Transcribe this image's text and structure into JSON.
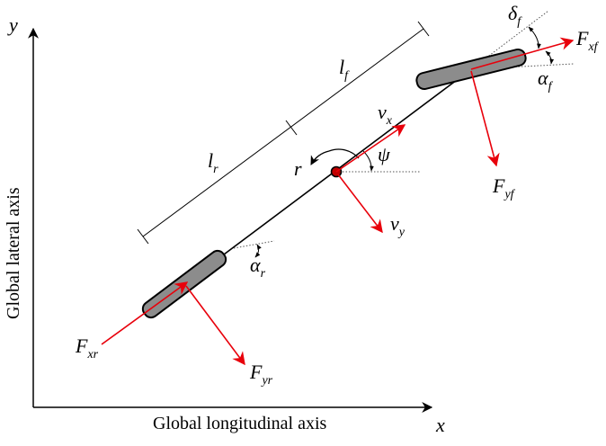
{
  "axes": {
    "x_label": "Global longitudinal axis",
    "y_label": "Global lateral axis",
    "x_symbol": "x",
    "y_symbol": "y"
  },
  "lengths": {
    "front": {
      "main": "l",
      "sub": "f"
    },
    "rear": {
      "main": "l",
      "sub": "r"
    }
  },
  "forces": {
    "front_longitudinal": {
      "main": "F",
      "sub": "xf"
    },
    "front_lateral": {
      "main": "F",
      "sub": "yf"
    },
    "rear_longitudinal": {
      "main": "F",
      "sub": "xr"
    },
    "rear_lateral": {
      "main": "F",
      "sub": "yr"
    }
  },
  "velocities": {
    "longitudinal": {
      "main": "v",
      "sub": "x"
    },
    "lateral": {
      "main": "v",
      "sub": "y"
    }
  },
  "angles": {
    "steering": {
      "main": "δ",
      "sub": "f"
    },
    "front_slip": {
      "main": "α",
      "sub": "f"
    },
    "rear_slip": {
      "main": "α",
      "sub": "r"
    },
    "heading": "ψ",
    "yaw_rate": "r"
  },
  "colors": {
    "force_arrow": "#e8000b",
    "wheel_fill": "#8c8c8c",
    "cg_fill": "#c00000"
  }
}
